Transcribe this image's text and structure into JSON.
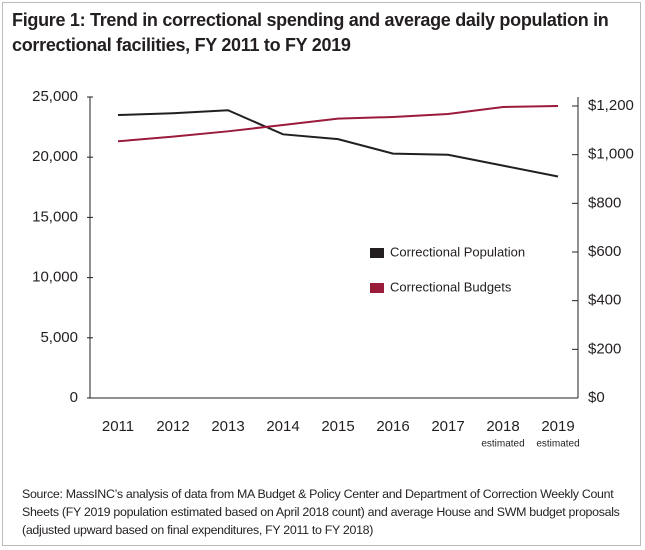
{
  "chart_data": {
    "type": "line",
    "title": "Figure 1: Trend in correctional spending and average daily population in correctional facilities, FY 2011 to FY 2019",
    "categories": [
      "2011",
      "2012",
      "2013",
      "2014",
      "2015",
      "2016",
      "2017",
      "2018",
      "2019"
    ],
    "category_notes": [
      null,
      null,
      null,
      null,
      null,
      null,
      null,
      "estimated",
      "estimated"
    ],
    "series": [
      {
        "name": "Correctional Population",
        "color": "#231f20",
        "axis": "y",
        "values": [
          23500,
          23650,
          23900,
          21900,
          21500,
          20300,
          20200,
          19300,
          18400
        ]
      },
      {
        "name": "Correctional Budgets",
        "color": "#9b1b3a",
        "axis": "y2",
        "values": [
          1055,
          1074,
          1096,
          1122,
          1148,
          1155,
          1167,
          1196,
          1200
        ]
      }
    ],
    "ylim": [
      0,
      25000
    ],
    "yticks": [
      0,
      {
        "value": 5000,
        "label": "5,000"
      },
      {
        "value": 10000,
        "label": "10,000"
      },
      {
        "value": 15000,
        "label": "15,000"
      },
      {
        "value": 20000,
        "label": "20,000"
      },
      {
        "value": 25000,
        "label": "25,000"
      }
    ],
    "y2lim": [
      0,
      1237
    ],
    "y2ticks": [
      {
        "value": 0,
        "label": "$0"
      },
      {
        "value": 200,
        "label": "$200"
      },
      {
        "value": 400,
        "label": "$400"
      },
      {
        "value": 600,
        "label": "$600"
      },
      {
        "value": 800,
        "label": "$800"
      },
      {
        "value": 1000,
        "label": "$1,000"
      },
      {
        "value": 1200,
        "label": "$1,200"
      }
    ],
    "source": "Source: MassINC’s analysis of data from MA Budget & Policy Center and Department of Correction Weekly Count Sheets (FY 2019 population estimated based on April 2018 count) and average House and SWM budget proposals (adjusted upward based on final expenditures, FY 2011 to FY 2018)"
  }
}
